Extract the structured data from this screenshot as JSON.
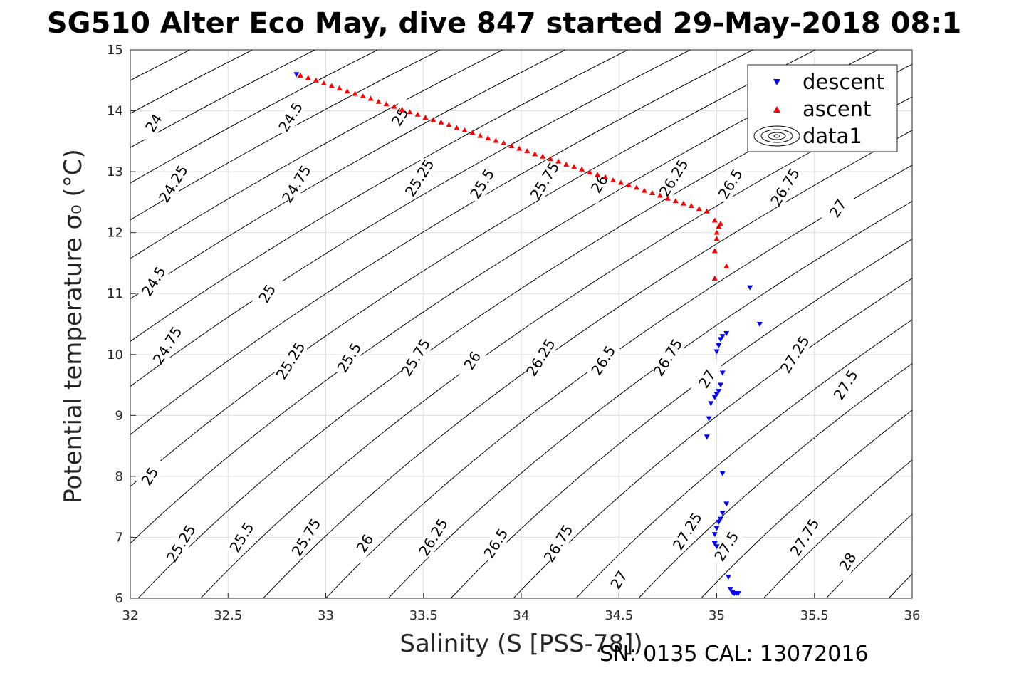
{
  "chart_data": {
    "type": "scatter",
    "title": "SG510 Alter Eco May, dive 847 started 29-May-2018 08:1",
    "xlabel": "Salinity (S [PSS-78])",
    "ylabel": "Potential temperature σ₀ (°C)",
    "xlim": [
      32,
      36
    ],
    "ylim": [
      6,
      15
    ],
    "xticks": [
      32,
      32.5,
      33,
      33.5,
      34,
      34.5,
      35,
      35.5,
      36
    ],
    "xtick_labels": [
      "32",
      "32.5",
      "33",
      "33.5",
      "34",
      "34.5",
      "35",
      "35.5",
      "36"
    ],
    "yticks": [
      6,
      7,
      8,
      9,
      10,
      11,
      12,
      13,
      14,
      15
    ],
    "ytick_labels": [
      "6",
      "7",
      "8",
      "9",
      "10",
      "11",
      "12",
      "13",
      "14",
      "15"
    ],
    "grid": true,
    "legend_position": "top-right",
    "legend": [
      "descent",
      "ascent",
      "data1"
    ],
    "footer": "SN: 0135  CAL: 13072016",
    "contours": {
      "name": "data1",
      "levels": [
        24,
        24.25,
        24.5,
        24.75,
        25,
        25.25,
        25.5,
        25.75,
        26,
        26.25,
        26.5,
        26.75,
        27,
        27.25,
        27.5,
        27.75,
        28
      ],
      "level_labels": [
        "24",
        "24.25",
        "24.5",
        "24.75",
        "25",
        "25.25",
        "25.5",
        "25.75",
        "26",
        "26.25",
        "26.5",
        "26.75",
        "27",
        "27.25",
        "27.5",
        "27.75",
        "28"
      ],
      "slope_dT_dS": 3.4,
      "level_spacing_dS": 0.32,
      "label_positions": [
        {
          "label": "24",
          "x": 32.12,
          "y": 13.8
        },
        {
          "label": "24.25",
          "x": 32.22,
          "y": 12.8
        },
        {
          "label": "24.5",
          "x": 32.12,
          "y": 11.2
        },
        {
          "label": "24.75",
          "x": 32.19,
          "y": 10.15
        },
        {
          "label": "25",
          "x": 32.1,
          "y": 8.0
        },
        {
          "label": "25.25",
          "x": 32.26,
          "y": 6.9
        },
        {
          "label": "24.5",
          "x": 32.82,
          "y": 13.9
        },
        {
          "label": "24.75",
          "x": 32.85,
          "y": 12.8
        },
        {
          "label": "25",
          "x": 32.7,
          "y": 11.0
        },
        {
          "label": "25.25",
          "x": 32.82,
          "y": 9.9
        },
        {
          "label": "25.5",
          "x": 32.57,
          "y": 7.0
        },
        {
          "label": "25.75",
          "x": 32.9,
          "y": 7.0
        },
        {
          "label": "25",
          "x": 33.38,
          "y": 13.9
        },
        {
          "label": "25.25",
          "x": 33.48,
          "y": 12.9
        },
        {
          "label": "25.5",
          "x": 33.12,
          "y": 9.95
        },
        {
          "label": "25.75",
          "x": 33.46,
          "y": 9.95
        },
        {
          "label": "26",
          "x": 33.2,
          "y": 6.9
        },
        {
          "label": "26.25",
          "x": 33.55,
          "y": 7.0
        },
        {
          "label": "25.5",
          "x": 33.8,
          "y": 12.8
        },
        {
          "label": "25.75",
          "x": 34.12,
          "y": 12.85
        },
        {
          "label": "26",
          "x": 33.75,
          "y": 9.9
        },
        {
          "label": "26.25",
          "x": 34.1,
          "y": 9.95
        },
        {
          "label": "26.5",
          "x": 33.87,
          "y": 6.9
        },
        {
          "label": "26.75",
          "x": 34.19,
          "y": 6.9
        },
        {
          "label": "26",
          "x": 34.4,
          "y": 12.8
        },
        {
          "label": "26.25",
          "x": 34.78,
          "y": 12.9
        },
        {
          "label": "26.5",
          "x": 34.42,
          "y": 9.9
        },
        {
          "label": "26.75",
          "x": 34.75,
          "y": 9.95
        },
        {
          "label": "27",
          "x": 34.5,
          "y": 6.3
        },
        {
          "label": "27.25",
          "x": 34.85,
          "y": 7.1
        },
        {
          "label": "26.5",
          "x": 35.07,
          "y": 12.8
        },
        {
          "label": "26.75",
          "x": 35.35,
          "y": 12.75
        },
        {
          "label": "27",
          "x": 34.95,
          "y": 9.6
        },
        {
          "label": "27.25",
          "x": 35.4,
          "y": 10.0
        },
        {
          "label": "27.5",
          "x": 35.05,
          "y": 6.85
        },
        {
          "label": "27.75",
          "x": 35.45,
          "y": 7.0
        },
        {
          "label": "27",
          "x": 35.62,
          "y": 12.4
        },
        {
          "label": "27.5",
          "x": 35.66,
          "y": 9.5
        },
        {
          "label": "28",
          "x": 35.67,
          "y": 6.6
        }
      ]
    },
    "series": [
      {
        "name": "descent",
        "marker": "triangle-down",
        "color": "#0000ff",
        "x": [
          32.85,
          35.17,
          35.22,
          35.05,
          35.03,
          35.02,
          35.01,
          35.0,
          34.99,
          35.03,
          35.02,
          35.01,
          35.0,
          34.99,
          34.97,
          34.96,
          34.95,
          35.03,
          35.05,
          35.03,
          35.02,
          35.01,
          35.0,
          34.99,
          34.99,
          35.0,
          35.06,
          35.07,
          35.08,
          35.09,
          35.1,
          35.11
        ],
        "y": [
          14.6,
          11.1,
          10.5,
          10.35,
          10.3,
          10.25,
          10.15,
          10.05,
          9.3,
          9.7,
          9.5,
          9.4,
          9.35,
          9.3,
          9.2,
          8.95,
          8.65,
          8.05,
          7.55,
          7.4,
          7.3,
          7.25,
          7.15,
          7.05,
          6.9,
          6.85,
          6.35,
          6.15,
          6.1,
          6.08,
          6.08,
          6.08
        ]
      },
      {
        "name": "ascent",
        "marker": "triangle-up",
        "color": "#ff0000",
        "x": [
          32.87,
          32.91,
          32.95,
          32.99,
          33.03,
          33.07,
          33.11,
          33.15,
          33.19,
          33.23,
          33.27,
          33.31,
          33.35,
          33.39,
          33.43,
          33.47,
          33.51,
          33.55,
          33.59,
          33.63,
          33.67,
          33.71,
          33.75,
          33.79,
          33.83,
          33.87,
          33.91,
          33.95,
          33.99,
          34.03,
          34.07,
          34.11,
          34.15,
          34.19,
          34.23,
          34.27,
          34.31,
          34.35,
          34.39,
          34.43,
          34.47,
          34.51,
          34.55,
          34.59,
          34.63,
          34.67,
          34.71,
          34.75,
          34.79,
          34.83,
          34.87,
          34.91,
          34.95,
          34.99,
          35.02,
          35.01,
          35.0,
          35.0,
          34.99,
          35.05,
          34.99
        ],
        "y": [
          14.58,
          14.54,
          14.5,
          14.45,
          14.41,
          14.37,
          14.32,
          14.28,
          14.24,
          14.2,
          14.15,
          14.11,
          14.07,
          14.02,
          13.98,
          13.94,
          13.89,
          13.85,
          13.81,
          13.77,
          13.72,
          13.68,
          13.64,
          13.59,
          13.55,
          13.51,
          13.47,
          13.42,
          13.38,
          13.34,
          13.29,
          13.25,
          13.21,
          13.17,
          13.12,
          13.08,
          13.04,
          12.99,
          12.95,
          12.91,
          12.86,
          12.82,
          12.78,
          12.74,
          12.69,
          12.65,
          12.61,
          12.56,
          12.52,
          12.48,
          12.44,
          12.39,
          12.35,
          12.2,
          12.15,
          12.1,
          12.0,
          11.9,
          11.7,
          11.45,
          11.25
        ]
      }
    ]
  }
}
